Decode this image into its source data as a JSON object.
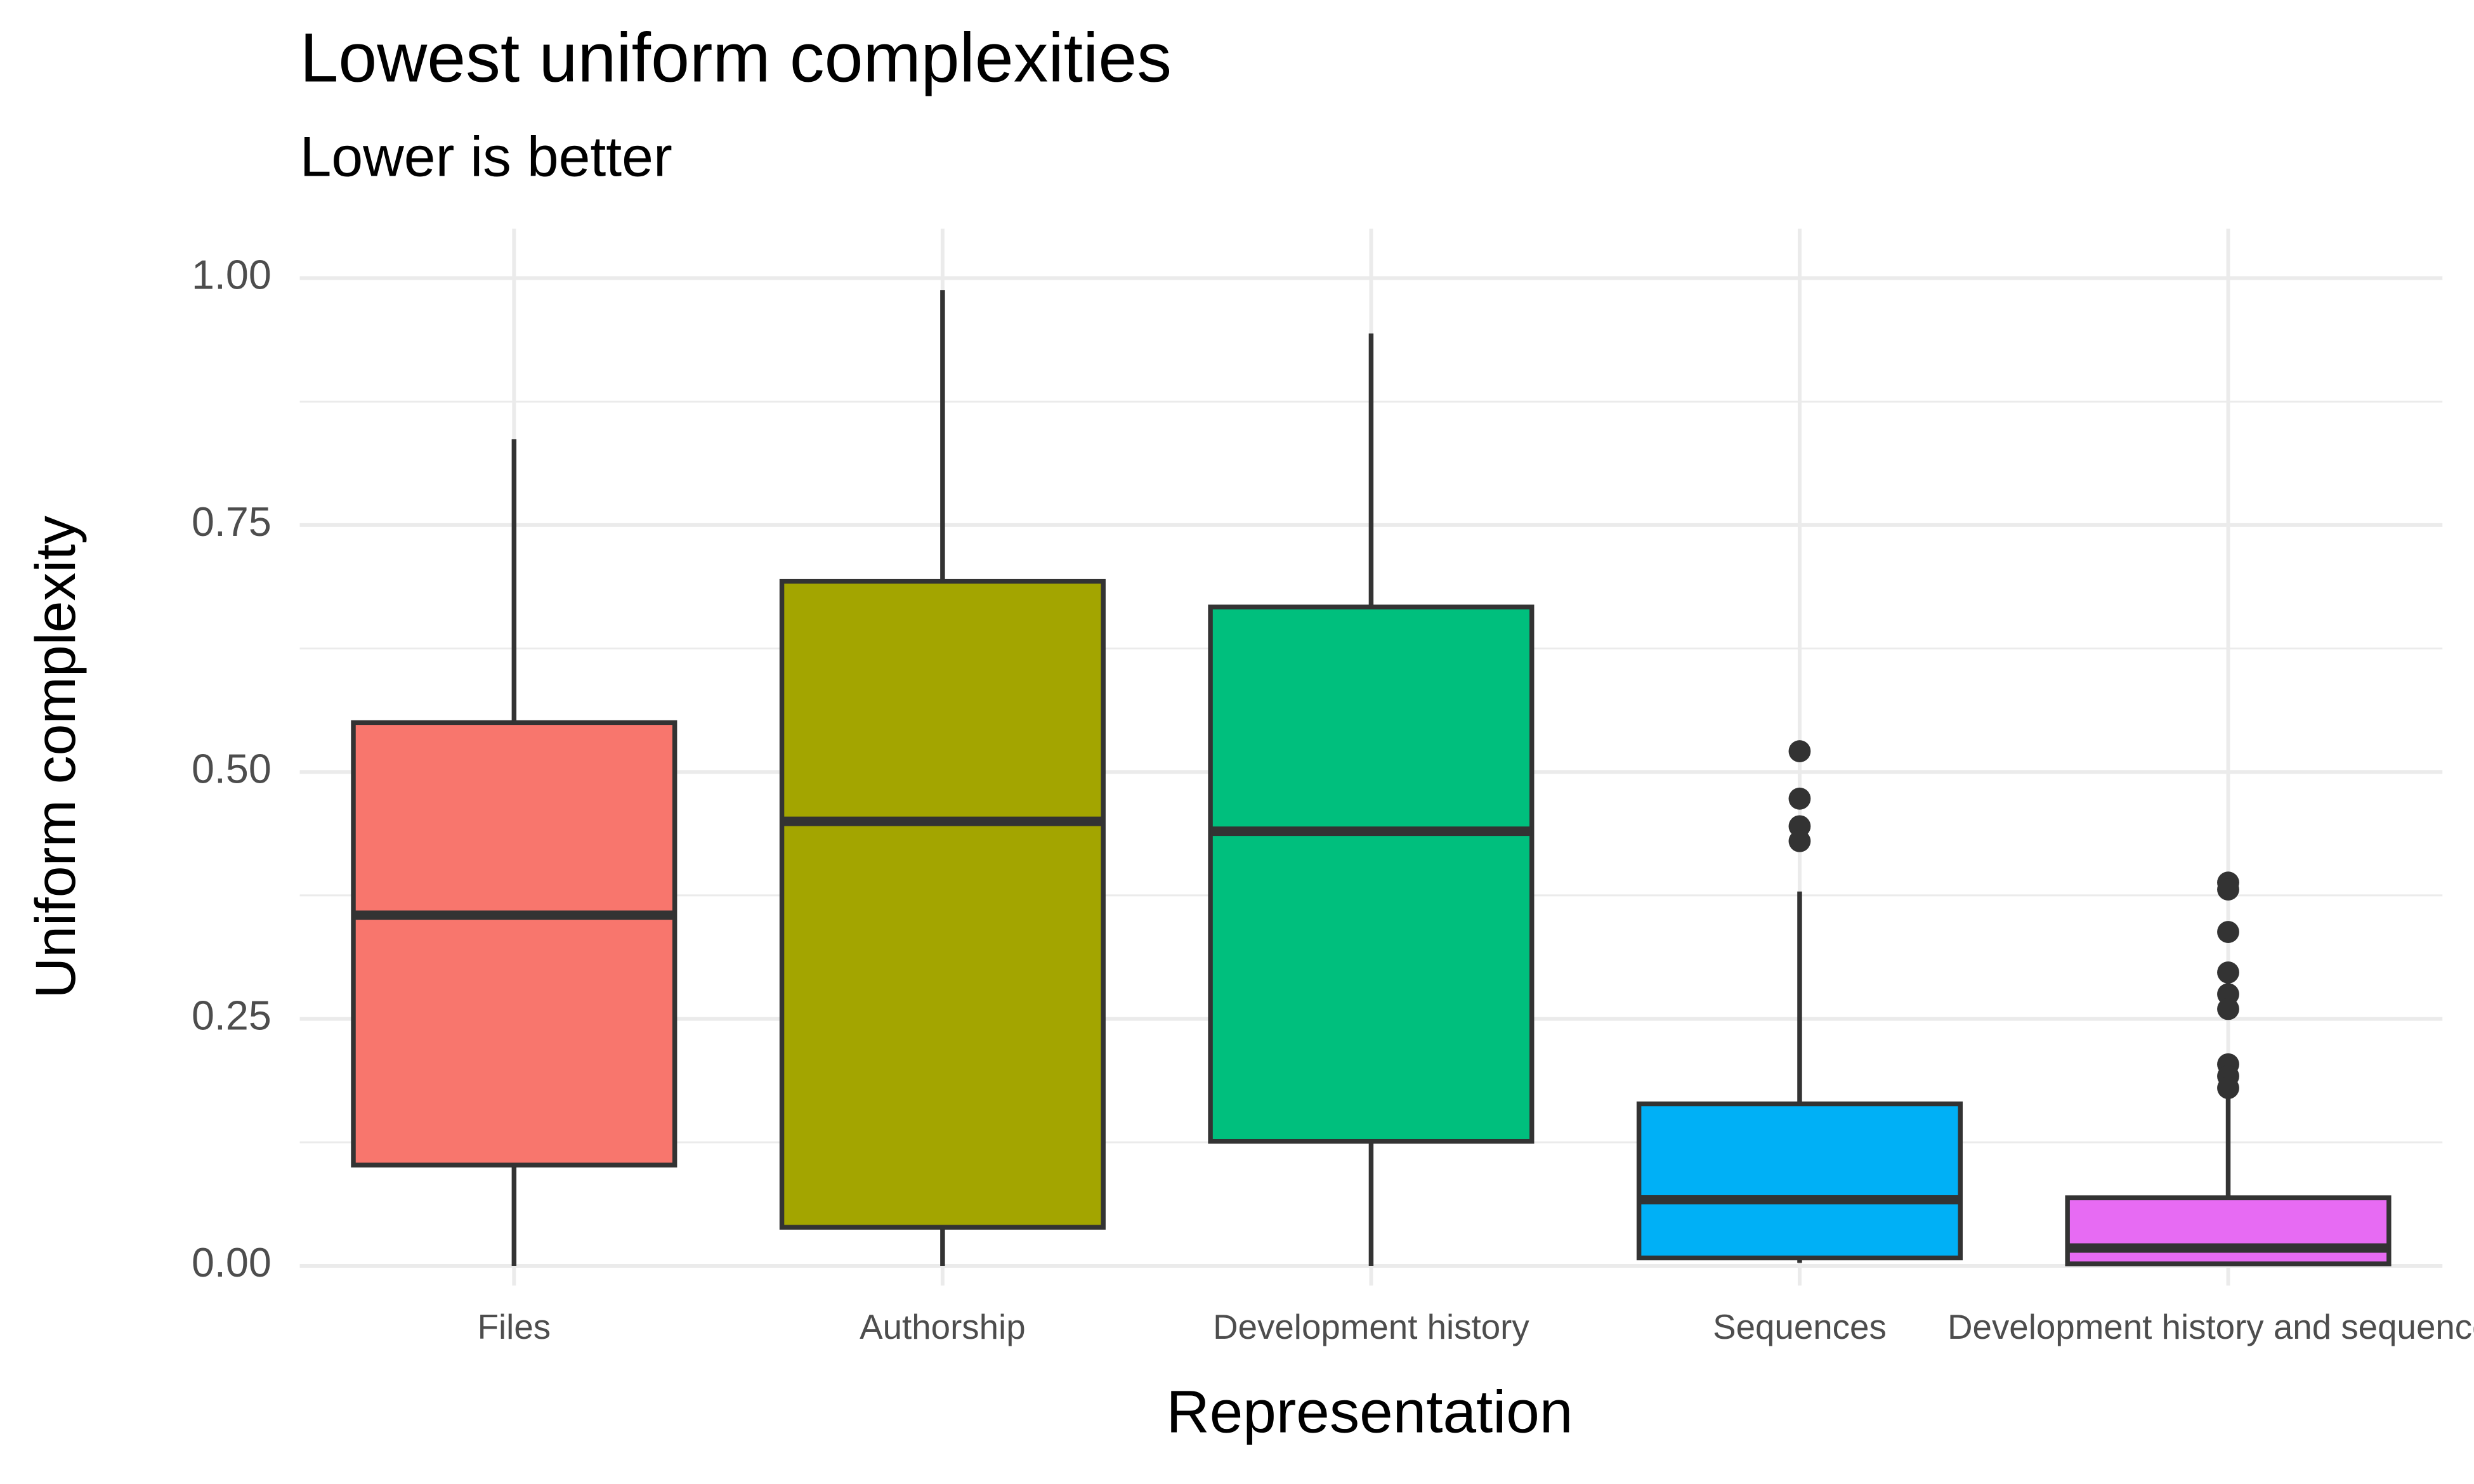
{
  "chart_data": {
    "type": "box",
    "title": "Lowest uniform complexities",
    "subtitle": "Lower is better",
    "x_label": "Representation",
    "y_label": "Uniform complexity",
    "categories": [
      "Files",
      "Authorship",
      "Development history",
      "Sequences",
      "Development history and sequences"
    ],
    "boxes": [
      {
        "min": 0,
        "q1": 0.102,
        "median": 0.355,
        "q3": 0.55,
        "max": 0.837,
        "outliers": [],
        "color": "#F8766D"
      },
      {
        "min": 0,
        "q1": 0.039,
        "median": 0.45,
        "q3": 0.693,
        "max": 0.988,
        "outliers": [],
        "color": "#A3A500"
      },
      {
        "min": 0,
        "q1": 0.126,
        "median": 0.44,
        "q3": 0.667,
        "max": 0.944,
        "outliers": [],
        "color": "#00BF7D"
      },
      {
        "min": 0.003,
        "q1": 0.008,
        "median": 0.067,
        "q3": 0.164,
        "max": 0.379,
        "outliers": [
          0.521,
          0.473,
          0.445,
          0.43
        ],
        "color": "#00B0F6"
      },
      {
        "min": 0.001,
        "q1": 0.002,
        "median": 0.018,
        "q3": 0.069,
        "max": 0.176,
        "outliers": [
          0.388,
          0.381,
          0.338,
          0.297,
          0.275,
          0.26,
          0.204,
          0.192,
          0.18
        ],
        "color": "#E76BF3"
      }
    ],
    "ylim": [
      -0.02,
      1.05
    ],
    "yticks": [
      {
        "value": 0,
        "label": "0.00"
      },
      {
        "value": 0.25,
        "label": "0.25"
      },
      {
        "value": 0.5,
        "label": "0.50"
      },
      {
        "value": 0.75,
        "label": "0.75"
      },
      {
        "value": 1,
        "label": "1.00"
      }
    ],
    "grid": true,
    "minor_grid": true
  }
}
